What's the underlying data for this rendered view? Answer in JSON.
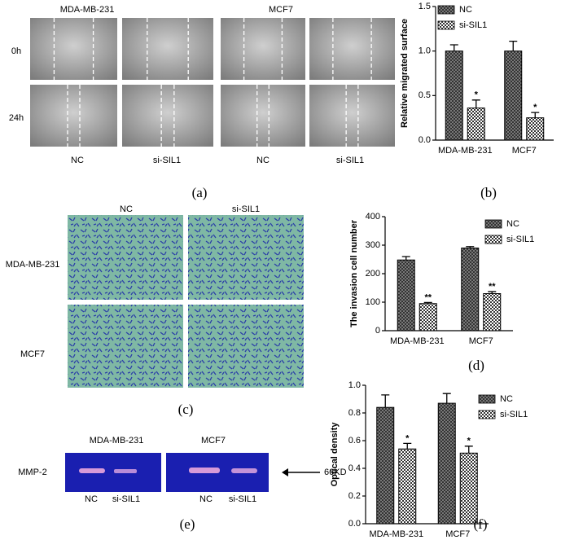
{
  "panels": {
    "a": {
      "columns": [
        "MDA-MB-231",
        "MCF7"
      ],
      "rows": [
        "0h",
        "24h"
      ],
      "conditions": [
        "NC",
        "si-SIL1",
        "NC",
        "si-SIL1"
      ],
      "label": "(a)"
    },
    "c": {
      "columns": [
        "NC",
        "si-SIL1"
      ],
      "rows": [
        "MDA-MB-231",
        "MCF7"
      ],
      "label": "(c)"
    },
    "e": {
      "columns": [
        "MDA-MB-231",
        "MCF7"
      ],
      "row": "MMP-2",
      "marker": "66KD",
      "lanes": [
        "NC",
        "si-SIL1",
        "NC",
        "si-SIL1"
      ],
      "label": "(e)"
    }
  },
  "chart_data": [
    {
      "type": "bar",
      "panel_label": "(b)",
      "ylabel": "Relative migrated surface",
      "categories": [
        "MDA-MB-231",
        "MCF7"
      ],
      "series": [
        {
          "name": "NC",
          "color": "#8a8a8a",
          "values": [
            1.0,
            1.0
          ],
          "errors": [
            0.07,
            0.11
          ]
        },
        {
          "name": "si-SIL1",
          "color": "#333333",
          "values": [
            0.36,
            0.25
          ],
          "errors": [
            0.09,
            0.06
          ],
          "labels": [
            "*",
            "*"
          ]
        }
      ],
      "ylim": [
        0,
        1.5
      ],
      "yticks": [
        {
          "value": 0,
          "label": "0.0"
        },
        {
          "value": 0.5,
          "label": "0.5"
        },
        {
          "value": 1,
          "label": "1.0"
        },
        {
          "value": 1.5,
          "label": "1.5"
        }
      ],
      "legend": "upper right"
    },
    {
      "type": "bar",
      "panel_label": "(d)",
      "ylabel": "The invasion cell number",
      "categories": [
        "MDA-MB-231",
        "MCF7"
      ],
      "series": [
        {
          "name": "NC",
          "color": "#8a8a8a",
          "values": [
            248,
            290
          ],
          "errors": [
            12,
            5
          ]
        },
        {
          "name": "si-SIL1",
          "color": "#333333",
          "values": [
            95,
            130
          ],
          "errors": [
            4,
            7
          ],
          "labels": [
            "**",
            "**"
          ]
        }
      ],
      "ylim": [
        0,
        400
      ],
      "yticks": [
        0,
        100,
        200,
        300,
        400
      ],
      "legend": "upper right"
    },
    {
      "type": "bar",
      "panel_label": "(f)",
      "ylabel": "Optical density",
      "categories": [
        "MDA-MB-231",
        "MCF7"
      ],
      "series": [
        {
          "name": "NC",
          "color": "#8a8a8a",
          "values": [
            0.84,
            0.87
          ],
          "errors": [
            0.09,
            0.07
          ]
        },
        {
          "name": "si-SIL1",
          "color": "#333333",
          "values": [
            0.54,
            0.51
          ],
          "errors": [
            0.04,
            0.05
          ],
          "labels": [
            "*",
            "*"
          ]
        }
      ],
      "ylim": [
        0,
        1.0
      ],
      "yticks": [
        {
          "value": 0,
          "label": "0.0"
        },
        {
          "value": 0.2,
          "label": "0.2"
        },
        {
          "value": 0.4,
          "label": "0.4"
        },
        {
          "value": 0.6,
          "label": "0.6"
        },
        {
          "value": 0.8,
          "label": "0.8"
        },
        {
          "value": 1,
          "label": "1.0"
        }
      ],
      "legend": "upper right"
    }
  ]
}
